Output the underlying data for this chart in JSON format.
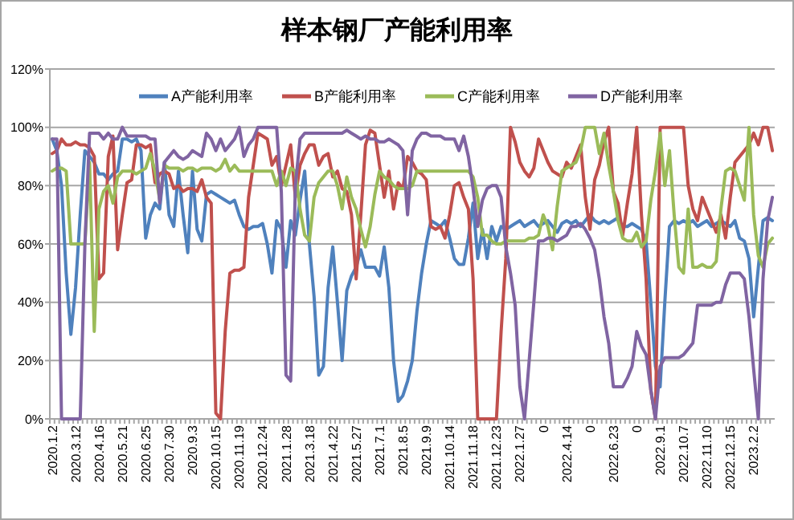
{
  "chart_data": {
    "type": "line",
    "title": "样本钢厂产能利用率",
    "categories": [
      "2020.1.2",
      null,
      null,
      null,
      null,
      "2020.3.12",
      null,
      null,
      null,
      null,
      "2020.4.16",
      null,
      null,
      null,
      null,
      "2020.5.21",
      null,
      null,
      null,
      null,
      "2020.6.25",
      null,
      null,
      null,
      null,
      "2020.7.30",
      null,
      null,
      null,
      null,
      "2020.9.3",
      null,
      null,
      null,
      null,
      "2020.10.15",
      null,
      null,
      null,
      null,
      "2020.11.19",
      null,
      null,
      null,
      null,
      "2020.12.24",
      null,
      null,
      null,
      null,
      "2021.1.28",
      null,
      null,
      null,
      null,
      "2021.3.18",
      null,
      null,
      null,
      null,
      "2021.4.22",
      null,
      null,
      null,
      null,
      "2021.5.27",
      null,
      null,
      null,
      null,
      "2021.7.1",
      null,
      null,
      null,
      null,
      "2021.8.5",
      null,
      null,
      null,
      null,
      "2021.9.9",
      null,
      null,
      null,
      null,
      "2021.10.14",
      null,
      null,
      null,
      null,
      "2021.11.18",
      null,
      null,
      null,
      null,
      "2021.12.23",
      null,
      null,
      null,
      null,
      "2022.1.27",
      null,
      null,
      null,
      null,
      "0",
      null,
      null,
      null,
      null,
      "2022.4.14",
      null,
      null,
      null,
      null,
      "0",
      null,
      null,
      null,
      null,
      "2022.6.23",
      null,
      null,
      null,
      null,
      "0",
      null,
      null,
      null,
      null,
      "2022.9.1",
      null,
      null,
      null,
      null,
      "2022.10.7",
      null,
      null,
      null,
      null,
      "2022.11.10",
      null,
      null,
      null,
      null,
      "2022.12.15",
      null,
      null,
      null,
      null,
      "2023.2.2",
      null,
      null,
      null,
      null
    ],
    "series": [
      {
        "name": "A产能利用率",
        "color": "#4f81bd",
        "values": [
          96,
          92,
          80,
          50,
          29,
          45,
          70,
          92,
          90,
          88,
          84,
          84,
          82,
          84,
          85,
          96,
          96,
          95,
          96,
          92,
          62,
          70,
          74,
          72,
          88,
          70,
          66,
          85,
          70,
          57,
          85,
          65,
          61,
          77,
          78,
          77,
          76,
          75,
          74,
          75,
          70,
          66,
          65,
          66,
          66,
          67,
          60,
          50,
          68,
          65,
          52,
          68,
          63,
          75,
          85,
          60,
          42,
          15,
          18,
          45,
          59,
          40,
          20,
          44,
          49,
          52,
          58,
          52,
          52,
          52,
          49,
          59,
          45,
          20,
          6,
          8,
          13,
          20,
          37,
          50,
          60,
          68,
          67,
          66,
          68,
          62,
          55,
          53,
          53,
          62,
          74,
          55,
          65,
          55,
          66,
          61,
          66,
          65,
          66,
          67,
          68,
          66,
          67,
          68,
          66,
          67,
          68,
          66,
          64,
          67,
          68,
          67,
          68,
          66,
          68,
          70,
          68,
          67,
          68,
          67,
          68,
          69,
          66,
          66,
          67,
          66,
          65,
          61,
          40,
          18,
          11,
          40,
          66,
          68,
          67,
          68,
          67,
          68,
          66,
          67,
          68,
          66,
          67,
          68,
          67,
          66,
          68,
          62,
          61,
          55,
          35,
          52,
          68,
          69,
          68
        ]
      },
      {
        "name": "B产能利用率",
        "color": "#c0504d",
        "values": [
          91,
          92,
          96,
          94,
          94,
          95,
          94,
          94,
          93,
          90,
          48,
          50,
          90,
          97,
          58,
          70,
          81,
          82,
          94,
          94,
          93,
          94,
          81,
          84,
          85,
          84,
          79,
          80,
          78,
          79,
          79,
          78,
          82,
          76,
          74,
          2,
          0,
          30,
          50,
          51,
          51,
          52,
          76,
          87,
          98,
          97,
          96,
          87,
          90,
          80,
          87,
          94,
          76,
          87,
          91,
          94,
          94,
          87,
          90,
          91,
          83,
          85,
          79,
          78,
          70,
          48,
          70,
          94,
          99,
          98,
          87,
          76,
          85,
          72,
          81,
          79,
          90,
          88,
          85,
          84,
          82,
          66,
          65,
          66,
          62,
          70,
          80,
          81,
          76,
          72,
          48,
          0,
          0,
          0,
          0,
          0,
          30,
          55,
          100,
          95,
          88,
          85,
          83,
          86,
          96,
          92,
          88,
          85,
          84,
          83,
          88,
          86,
          90,
          94,
          76,
          65,
          82,
          87,
          95,
          100,
          78,
          74,
          63,
          74,
          84,
          100,
          70,
          48,
          10,
          0,
          100,
          100,
          100,
          100,
          100,
          100,
          80,
          72,
          68,
          76,
          72,
          68,
          64,
          70,
          62,
          76,
          88,
          90,
          92,
          94,
          98,
          94,
          100,
          100,
          92
        ]
      },
      {
        "name": "C产能利用率",
        "color": "#9bbb59",
        "values": [
          85,
          86,
          86,
          85,
          60,
          60,
          60,
          60,
          88,
          30,
          72,
          78,
          80,
          74,
          83,
          85,
          85,
          85,
          84,
          85,
          86,
          91,
          85,
          75,
          87,
          86,
          86,
          86,
          85,
          86,
          86,
          85,
          86,
          86,
          86,
          85,
          86,
          89,
          85,
          87,
          85,
          85,
          85,
          85,
          85,
          85,
          85,
          85,
          80,
          85,
          80,
          86,
          85,
          72,
          63,
          61,
          76,
          81,
          83,
          85,
          85,
          80,
          72,
          83,
          76,
          72,
          65,
          59,
          66,
          77,
          85,
          83,
          82,
          80,
          79,
          79,
          79,
          80,
          85,
          85,
          85,
          85,
          85,
          85,
          85,
          85,
          85,
          85,
          85,
          85,
          83,
          76,
          63,
          63,
          61,
          60,
          60,
          61,
          61,
          61,
          61,
          61,
          62,
          62,
          63,
          70,
          66,
          58,
          73,
          85,
          86,
          87,
          88,
          92,
          100,
          100,
          100,
          91,
          98,
          87,
          78,
          68,
          62,
          61,
          61,
          64,
          59,
          61,
          75,
          85,
          98,
          80,
          92,
          70,
          52,
          50,
          72,
          52,
          52,
          53,
          52,
          52,
          54,
          72,
          85,
          86,
          85,
          80,
          75,
          100,
          70,
          56,
          52,
          60,
          62
        ]
      },
      {
        "name": "D产能利用率",
        "color": "#8064a2",
        "values": [
          96,
          96,
          0,
          0,
          0,
          0,
          0,
          60,
          98,
          98,
          98,
          96,
          98,
          96,
          96,
          100,
          97,
          97,
          97,
          97,
          97,
          96,
          96,
          74,
          88,
          90,
          92,
          90,
          89,
          90,
          92,
          91,
          90,
          98,
          96,
          92,
          96,
          92,
          94,
          96,
          100,
          90,
          94,
          96,
          100,
          100,
          100,
          100,
          100,
          78,
          15,
          13,
          80,
          96,
          98,
          98,
          98,
          98,
          98,
          98,
          98,
          98,
          98,
          99,
          98,
          97,
          96,
          97,
          96,
          96,
          95,
          95,
          96,
          95,
          94,
          92,
          70,
          92,
          96,
          98,
          98,
          97,
          97,
          97,
          96,
          96,
          96,
          92,
          97,
          90,
          79,
          66,
          75,
          79,
          80,
          80,
          76,
          59,
          50,
          39,
          11,
          0,
          20,
          40,
          61,
          61,
          62,
          62,
          61,
          62,
          63,
          66,
          66,
          67,
          65,
          62,
          58,
          48,
          35,
          26,
          11,
          11,
          11,
          14,
          18,
          30,
          25,
          22,
          10,
          0,
          18,
          21,
          21,
          21,
          21,
          22,
          24,
          26,
          39,
          39,
          39,
          39,
          40,
          40,
          46,
          50,
          50,
          50,
          48,
          35,
          17,
          0,
          48,
          68,
          76
        ]
      }
    ],
    "ylim": [
      0,
      120
    ],
    "yticks": [
      {
        "value": 0,
        "label": "0%"
      },
      {
        "value": 20,
        "label": "20%"
      },
      {
        "value": 40,
        "label": "40%"
      },
      {
        "value": 60,
        "label": "60%"
      },
      {
        "value": 80,
        "label": "80%"
      },
      {
        "value": 100,
        "label": "100%"
      },
      {
        "value": 120,
        "label": "120%"
      }
    ],
    "grid": "y",
    "legend": "top",
    "marker": "none",
    "line_style": "solid"
  }
}
